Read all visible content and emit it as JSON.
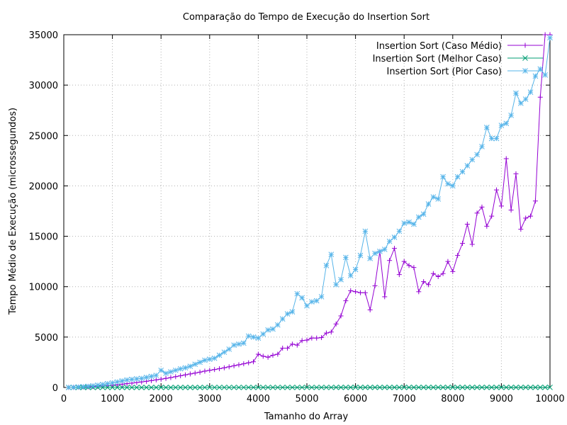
{
  "chart_data": {
    "type": "line",
    "title": "Comparação do Tempo de Execução do Insertion Sort",
    "xlabel": "Tamanho do Array",
    "ylabel": "Tempo Médio de Execução (microssegundos)",
    "xlim": [
      0,
      10000
    ],
    "ylim": [
      0,
      35000
    ],
    "xticks": [
      0,
      1000,
      2000,
      3000,
      4000,
      5000,
      6000,
      7000,
      8000,
      9000,
      10000
    ],
    "yticks": [
      0,
      5000,
      10000,
      15000,
      20000,
      25000,
      30000,
      35000
    ],
    "grid": true,
    "legend_position": "top-right",
    "series": [
      {
        "name": "Insertion Sort (Caso Médio)",
        "color": "#9400d3",
        "marker": "plus",
        "x": [
          100,
          200,
          300,
          400,
          500,
          600,
          700,
          800,
          900,
          1000,
          1100,
          1200,
          1300,
          1400,
          1500,
          1600,
          1700,
          1800,
          1900,
          2000,
          2100,
          2200,
          2300,
          2400,
          2500,
          2600,
          2700,
          2800,
          2900,
          3000,
          3100,
          3200,
          3300,
          3400,
          3500,
          3600,
          3700,
          3800,
          3900,
          4000,
          4100,
          4200,
          4300,
          4400,
          4500,
          4600,
          4700,
          4800,
          4900,
          5000,
          5100,
          5200,
          5300,
          5400,
          5500,
          5600,
          5700,
          5800,
          5900,
          6000,
          6100,
          6200,
          6300,
          6400,
          6500,
          6600,
          6700,
          6800,
          6900,
          7000,
          7100,
          7200,
          7300,
          7400,
          7500,
          7600,
          7700,
          7800,
          7900,
          8000,
          8100,
          8200,
          8300,
          8400,
          8500,
          8600,
          8700,
          8800,
          8900,
          9000,
          9100,
          9200,
          9300,
          9400,
          9500,
          9600,
          9700,
          9800,
          9900,
          10000
        ],
        "y": [
          3,
          10,
          25,
          40,
          60,
          90,
          120,
          150,
          190,
          230,
          270,
          320,
          380,
          430,
          490,
          550,
          610,
          680,
          750,
          820,
          900,
          980,
          1070,
          1160,
          1250,
          1340,
          1430,
          1520,
          1620,
          1700,
          1780,
          1860,
          1950,
          2050,
          2150,
          2250,
          2350,
          2450,
          2550,
          3300,
          3100,
          3000,
          3200,
          3300,
          3900,
          3900,
          4300,
          4200,
          4650,
          4700,
          4900,
          4900,
          4950,
          5400,
          5500,
          6300,
          7100,
          8600,
          9600,
          9500,
          9400,
          9400,
          7700,
          10100,
          13500,
          9000,
          12600,
          13800,
          11200,
          12500,
          12100,
          11900,
          9500,
          10500,
          10200,
          11300,
          11000,
          11300,
          12500,
          11500,
          13100,
          14300,
          16200,
          14200,
          17300,
          17900,
          16000,
          17000,
          19600,
          18000,
          22700,
          17600,
          21200,
          15700,
          16800,
          17000,
          18500,
          28800,
          35000,
          35000
        ]
      },
      {
        "name": "Insertion Sort (Melhor Caso)",
        "color": "#009e73",
        "marker": "x",
        "x": [
          100,
          200,
          300,
          400,
          500,
          600,
          700,
          800,
          900,
          1000,
          1100,
          1200,
          1300,
          1400,
          1500,
          1600,
          1700,
          1800,
          1900,
          2000,
          2100,
          2200,
          2300,
          2400,
          2500,
          2600,
          2700,
          2800,
          2900,
          3000,
          3100,
          3200,
          3300,
          3400,
          3500,
          3600,
          3700,
          3800,
          3900,
          4000,
          4100,
          4200,
          4300,
          4400,
          4500,
          4600,
          4700,
          4800,
          4900,
          5000,
          5100,
          5200,
          5300,
          5400,
          5500,
          5600,
          5700,
          5800,
          5900,
          6000,
          6100,
          6200,
          6300,
          6400,
          6500,
          6600,
          6700,
          6800,
          6900,
          7000,
          7100,
          7200,
          7300,
          7400,
          7500,
          7600,
          7700,
          7800,
          7900,
          8000,
          8100,
          8200,
          8300,
          8400,
          8500,
          8600,
          8700,
          8800,
          8900,
          9000,
          9100,
          9200,
          9300,
          9400,
          9500,
          9600,
          9700,
          9800,
          9900,
          10000
        ],
        "y": [
          0,
          0,
          0,
          0,
          0,
          0,
          0,
          0,
          1,
          1,
          1,
          1,
          1,
          1,
          1,
          1,
          1,
          1,
          1,
          2,
          2,
          2,
          2,
          2,
          2,
          2,
          2,
          2,
          3,
          3,
          3,
          3,
          3,
          3,
          3,
          3,
          3,
          4,
          4,
          4,
          4,
          4,
          4,
          4,
          4,
          4,
          5,
          5,
          5,
          5,
          5,
          5,
          5,
          5,
          5,
          6,
          6,
          6,
          6,
          6,
          6,
          6,
          6,
          6,
          7,
          7,
          7,
          7,
          7,
          7,
          7,
          7,
          7,
          8,
          8,
          8,
          8,
          8,
          8,
          8,
          8,
          8,
          9,
          9,
          9,
          9,
          9,
          9,
          9,
          9,
          9,
          10,
          10,
          10,
          10,
          10,
          10,
          10,
          10,
          10
        ]
      },
      {
        "name": "Insertion Sort (Pior Caso)",
        "color": "#56b4e9",
        "marker": "star",
        "x": [
          100,
          200,
          300,
          400,
          500,
          600,
          700,
          800,
          900,
          1000,
          1100,
          1200,
          1300,
          1400,
          1500,
          1600,
          1700,
          1800,
          1900,
          2000,
          2100,
          2200,
          2300,
          2400,
          2500,
          2600,
          2700,
          2800,
          2900,
          3000,
          3100,
          3200,
          3300,
          3400,
          3500,
          3600,
          3700,
          3800,
          3900,
          4000,
          4100,
          4200,
          4300,
          4400,
          4500,
          4600,
          4700,
          4800,
          4900,
          5000,
          5100,
          5200,
          5300,
          5400,
          5500,
          5600,
          5700,
          5800,
          5900,
          6000,
          6100,
          6200,
          6300,
          6400,
          6500,
          6600,
          6700,
          6800,
          6900,
          7000,
          7100,
          7200,
          7300,
          7400,
          7500,
          7600,
          7700,
          7800,
          7900,
          8000,
          8100,
          8200,
          8300,
          8400,
          8500,
          8600,
          8700,
          8800,
          8900,
          9000,
          9100,
          9200,
          9300,
          9400,
          9500,
          9600,
          9700,
          9800,
          9900,
          10000
        ],
        "y": [
          5,
          20,
          50,
          80,
          120,
          170,
          230,
          300,
          380,
          460,
          550,
          650,
          750,
          800,
          850,
          900,
          1000,
          1100,
          1200,
          1700,
          1400,
          1550,
          1700,
          1850,
          1950,
          2100,
          2300,
          2500,
          2700,
          2800,
          2900,
          3200,
          3500,
          3800,
          4200,
          4300,
          4400,
          5100,
          5000,
          4900,
          5300,
          5700,
          5800,
          6200,
          6800,
          7300,
          7500,
          9300,
          8900,
          8100,
          8500,
          8600,
          9000,
          12100,
          13200,
          10200,
          10700,
          12900,
          11100,
          11700,
          13100,
          15500,
          12800,
          13300,
          13500,
          13700,
          14500,
          14900,
          15500,
          16300,
          16400,
          16200,
          16900,
          17200,
          18200,
          18900,
          18700,
          20900,
          20200,
          20000,
          20900,
          21400,
          22000,
          22600,
          23100,
          23900,
          25800,
          24700,
          24700,
          26000,
          26200,
          27000,
          29200,
          28200,
          28600,
          29300,
          30900,
          31600,
          31000,
          34700
        ]
      }
    ]
  }
}
